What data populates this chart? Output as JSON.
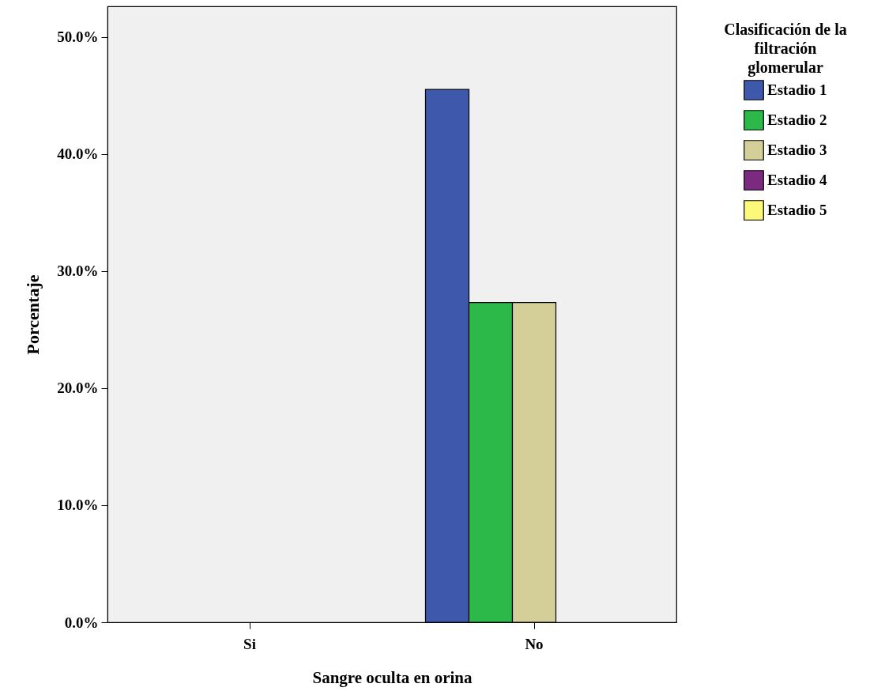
{
  "chart_data": {
    "type": "bar",
    "xlabel": "Sangre oculta en orina",
    "ylabel": "Porcentaje",
    "legend_title": "Clasificación de la\nfiltración\nglomerular",
    "legend": "top right",
    "grid": false,
    "categories": [
      "Si",
      "No"
    ],
    "series": [
      {
        "name": "Estadio 1",
        "color": "#3e58ac",
        "values": [
          0,
          45.5
        ]
      },
      {
        "name": "Estadio 2",
        "color": "#2db84a",
        "values": [
          0,
          27.3
        ]
      },
      {
        "name": "Estadio 3",
        "color": "#d4cf99",
        "values": [
          0,
          27.3
        ]
      },
      {
        "name": "Estadio 4",
        "color": "#7b2a7f",
        "values": [
          0,
          0
        ]
      },
      {
        "name": "Estadio 5",
        "color": "#fbf87a",
        "values": [
          0,
          0
        ]
      }
    ],
    "ylim": [
      0,
      52.6
    ],
    "yticks": [
      {
        "value": 0,
        "label": "0.0%"
      },
      {
        "value": 10,
        "label": "10.0%"
      },
      {
        "value": 20,
        "label": "20.0%"
      },
      {
        "value": 30,
        "label": "30.0%"
      },
      {
        "value": 40,
        "label": "40.0%"
      },
      {
        "value": 50,
        "label": "50.0%"
      }
    ]
  }
}
